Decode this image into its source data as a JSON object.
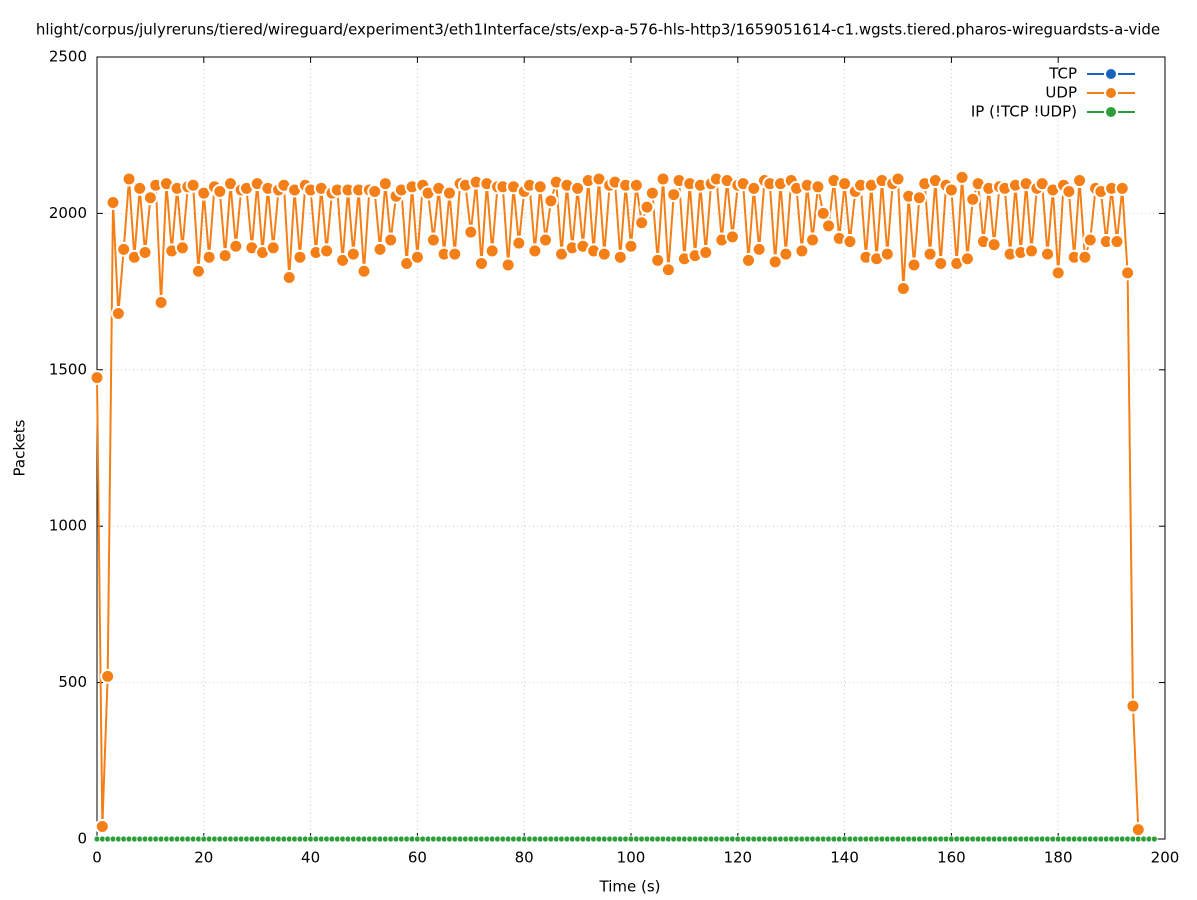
{
  "chart_data": {
    "type": "line",
    "title": "hlight/corpus/julyreruns/tiered/wireguard/experiment3/eth1Interface/sts/exp-a-576-hls-http3/1659051614-c1.wgsts.tiered.pharos-wireguardsts-a-vide",
    "xlabel": "Time (s)",
    "ylabel": "Packets",
    "xlim": [
      0,
      200
    ],
    "xticks": [
      0,
      20,
      40,
      60,
      80,
      100,
      120,
      140,
      160,
      180,
      200
    ],
    "ylim": [
      0,
      2500
    ],
    "yticks": [
      0,
      500,
      1000,
      1500,
      2000,
      2500
    ],
    "grid": true,
    "legend": "top-right",
    "x": [
      0,
      1,
      2,
      3,
      4,
      5,
      6,
      7,
      8,
      9,
      10,
      11,
      12,
      13,
      14,
      15,
      16,
      17,
      18,
      19,
      20,
      21,
      22,
      23,
      24,
      25,
      26,
      27,
      28,
      29,
      30,
      31,
      32,
      33,
      34,
      35,
      36,
      37,
      38,
      39,
      40,
      41,
      42,
      43,
      44,
      45,
      46,
      47,
      48,
      49,
      50,
      51,
      52,
      53,
      54,
      55,
      56,
      57,
      58,
      59,
      60,
      61,
      62,
      63,
      64,
      65,
      66,
      67,
      68,
      69,
      70,
      71,
      72,
      73,
      74,
      75,
      76,
      77,
      78,
      79,
      80,
      81,
      82,
      83,
      84,
      85,
      86,
      87,
      88,
      89,
      90,
      91,
      92,
      93,
      94,
      95,
      96,
      97,
      98,
      99,
      100,
      101,
      102,
      103,
      104,
      105,
      106,
      107,
      108,
      109,
      110,
      111,
      112,
      113,
      114,
      115,
      116,
      117,
      118,
      119,
      120,
      121,
      122,
      123,
      124,
      125,
      126,
      127,
      128,
      129,
      130,
      131,
      132,
      133,
      134,
      135,
      136,
      137,
      138,
      139,
      140,
      141,
      142,
      143,
      144,
      145,
      146,
      147,
      148,
      149,
      150,
      151,
      152,
      153,
      154,
      155,
      156,
      157,
      158,
      159,
      160,
      161,
      162,
      163,
      164,
      165,
      166,
      167,
      168,
      169,
      170,
      171,
      172,
      173,
      174,
      175,
      176,
      177,
      178,
      179,
      180,
      181,
      182,
      183,
      184,
      185,
      186,
      187,
      188,
      189,
      190,
      191,
      192,
      193,
      194,
      195,
      196,
      197,
      198
    ],
    "series": [
      {
        "name": "TCP",
        "color": "#1565c0",
        "values": [
          null,
          null,
          null,
          null,
          null,
          null,
          null,
          null,
          null,
          null,
          null,
          null,
          null,
          null,
          null,
          null,
          null,
          null,
          null,
          null,
          null,
          null,
          null,
          null,
          null,
          null,
          null,
          null,
          null,
          null,
          null,
          null,
          null,
          null,
          null,
          null,
          null,
          null,
          null,
          null,
          null,
          null,
          null,
          null,
          null,
          null,
          null,
          null,
          null,
          null,
          null,
          null,
          null,
          null,
          null,
          null,
          null,
          null,
          null,
          null,
          null,
          null,
          null,
          null,
          null,
          null,
          null,
          null,
          null,
          null,
          null,
          null,
          null,
          null,
          null,
          null,
          null,
          null,
          null,
          null,
          null,
          null,
          null,
          null,
          null,
          null,
          null,
          null,
          null,
          null,
          null,
          null,
          null,
          null,
          null,
          null,
          null,
          null,
          null,
          null,
          null,
          null,
          null,
          null,
          null,
          null,
          null,
          null,
          null,
          null,
          null,
          null,
          null,
          null,
          null,
          null,
          null,
          null,
          null,
          null,
          null,
          null,
          null,
          null,
          null,
          null,
          null,
          null,
          null,
          null,
          null,
          null,
          null,
          null,
          null,
          null,
          null,
          null,
          null,
          null,
          null,
          null,
          null,
          null,
          null,
          null,
          null,
          null,
          null,
          null,
          null,
          null,
          null,
          null,
          null,
          null,
          null,
          null,
          null,
          null,
          null,
          null,
          null,
          null,
          null,
          null,
          null,
          null,
          null,
          null,
          null,
          null,
          null,
          null,
          null,
          null,
          null,
          null,
          null,
          null,
          null,
          null,
          null,
          null,
          null,
          null,
          null,
          null,
          null,
          null,
          null,
          null,
          null,
          null,
          null,
          null,
          null,
          null,
          null
        ]
      },
      {
        "name": "UDP",
        "color": "#f57f17",
        "values": [
          1475,
          40,
          520,
          2035,
          1680,
          1885,
          2110,
          1860,
          2080,
          1875,
          2050,
          2090,
          1715,
          2095,
          1880,
          2080,
          1890,
          2085,
          2090,
          1815,
          2065,
          1860,
          2085,
          2070,
          1865,
          2095,
          1895,
          2075,
          2080,
          1890,
          2095,
          1875,
          2080,
          1890,
          2075,
          2090,
          1795,
          2075,
          1860,
          2090,
          2075,
          1875,
          2080,
          1880,
          2065,
          2075,
          1850,
          2075,
          1870,
          2075,
          1815,
          2075,
          2070,
          1885,
          2095,
          1915,
          2055,
          2075,
          1840,
          2085,
          1860,
          2090,
          2065,
          1915,
          2080,
          1870,
          2065,
          1870,
          2095,
          2090,
          1940,
          2100,
          1840,
          2095,
          1880,
          2085,
          2085,
          1835,
          2085,
          1905,
          2070,
          2090,
          1880,
          2085,
          1915,
          2040,
          2100,
          1870,
          2090,
          1890,
          2080,
          1895,
          2105,
          1880,
          2110,
          1870,
          2090,
          2100,
          1860,
          2090,
          1895,
          2090,
          1970,
          2020,
          2065,
          1850,
          2110,
          1820,
          2060,
          2105,
          1855,
          2095,
          1865,
          2090,
          1875,
          2095,
          2110,
          1915,
          2105,
          1925,
          2090,
          2095,
          1850,
          2080,
          1885,
          2105,
          2095,
          1845,
          2095,
          1870,
          2105,
          2080,
          1880,
          2090,
          1915,
          2085,
          2000,
          1960,
          2105,
          1920,
          2095,
          1910,
          2070,
          2090,
          1860,
          2090,
          1855,
          2105,
          1870,
          2095,
          2110,
          1760,
          2055,
          1835,
          2050,
          2095,
          1870,
          2105,
          1840,
          2090,
          2075,
          1840,
          2115,
          1855,
          2045,
          2095,
          1910,
          2080,
          1900,
          2085,
          2080,
          1870,
          2090,
          1875,
          2095,
          1880,
          2080,
          2095,
          1870,
          2075,
          1810,
          2090,
          2070,
          1860,
          2105,
          1860,
          1915,
          2080,
          2070,
          1910,
          2080,
          1910,
          2080,
          1810,
          425,
          30,
          null,
          null,
          null
        ]
      },
      {
        "name": "IP (!TCP  !UDP)",
        "color": "#2e9e3a",
        "values": [
          0,
          0,
          0,
          0,
          0,
          0,
          0,
          0,
          0,
          0,
          0,
          0,
          0,
          0,
          0,
          0,
          0,
          0,
          0,
          0,
          0,
          0,
          0,
          0,
          0,
          0,
          0,
          0,
          0,
          0,
          0,
          0,
          0,
          0,
          0,
          0,
          0,
          0,
          0,
          0,
          0,
          0,
          0,
          0,
          0,
          0,
          0,
          0,
          0,
          0,
          0,
          0,
          0,
          0,
          0,
          0,
          0,
          0,
          0,
          0,
          0,
          0,
          0,
          0,
          0,
          0,
          0,
          0,
          0,
          0,
          0,
          0,
          0,
          0,
          0,
          0,
          0,
          0,
          0,
          0,
          0,
          0,
          0,
          0,
          0,
          0,
          0,
          0,
          0,
          0,
          0,
          0,
          0,
          0,
          0,
          0,
          0,
          0,
          0,
          0,
          0,
          0,
          0,
          0,
          0,
          0,
          0,
          0,
          0,
          0,
          0,
          0,
          0,
          0,
          0,
          0,
          0,
          0,
          0,
          0,
          0,
          0,
          0,
          0,
          0,
          0,
          0,
          0,
          0,
          0,
          0,
          0,
          0,
          0,
          0,
          0,
          0,
          0,
          0,
          0,
          0,
          0,
          0,
          0,
          0,
          0,
          0,
          0,
          0,
          0,
          0,
          0,
          0,
          0,
          0,
          0,
          0,
          0,
          0,
          0,
          0,
          0,
          0,
          0,
          0,
          0,
          0,
          0,
          0,
          0,
          0,
          0,
          0,
          0,
          0,
          0,
          0,
          0,
          0,
          0,
          0,
          0,
          0,
          0,
          0,
          0,
          0,
          0,
          0,
          0,
          0,
          0,
          0,
          0,
          0,
          0,
          0,
          0,
          0
        ]
      }
    ]
  }
}
